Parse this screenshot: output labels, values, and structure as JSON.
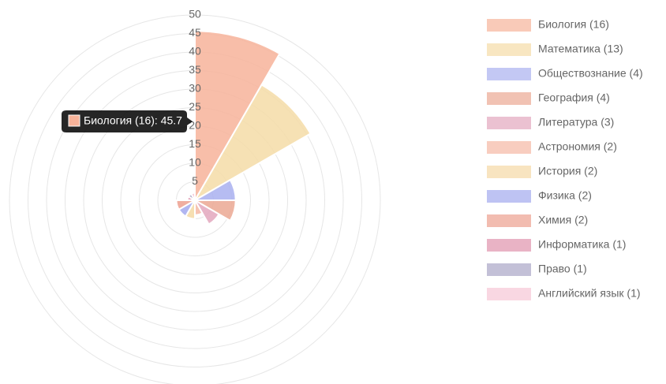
{
  "chart_data": {
    "type": "polarArea",
    "categories": [
      "Биология (16)",
      "Математика (13)",
      "Обществознание (4)",
      "География (4)",
      "Литература (3)",
      "Астрономия (2)",
      "История (2)",
      "Физика (2)",
      "Химия (2)",
      "Информатика (1)",
      "Право (1)",
      "Английский язык (1)"
    ],
    "values": [
      45.7,
      36,
      11,
      11,
      7.5,
      4,
      5,
      5,
      5,
      2,
      2,
      2
    ],
    "colors": [
      "#f7b39a",
      "#f5dca7",
      "#a9b0f0",
      "#eba893",
      "#e3a7bd",
      "#f5b8a4",
      "#f5d9a5",
      "#a3a9ee",
      "#eda08f",
      "#df93ad",
      "#aaa5c6",
      "#f7c6d6"
    ],
    "ylim": [
      0,
      50
    ],
    "yticks": [
      5,
      10,
      15,
      20,
      25,
      30,
      35,
      40,
      45,
      50
    ],
    "grid": true,
    "legend": "right",
    "tooltip": {
      "index": 0,
      "text": "Биология (16): 45.7"
    }
  }
}
